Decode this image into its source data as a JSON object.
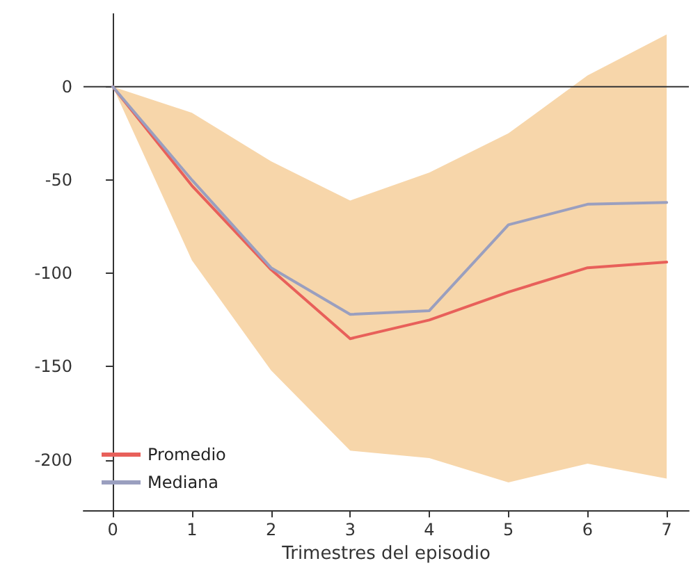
{
  "chart_data": {
    "type": "line",
    "xlabel": "Trimestres del episodio",
    "x": [
      0,
      1,
      2,
      3,
      4,
      5,
      6,
      7
    ],
    "series": [
      {
        "name": "Promedio",
        "color": "#e8605a",
        "values": [
          0,
          -53,
          -98,
          -135,
          -125,
          -110,
          -97,
          -94
        ],
        "lower": [
          0,
          -93,
          -152,
          -195,
          -199,
          -212,
          -202,
          -210
        ],
        "upper": [
          0,
          -14,
          -40,
          -61,
          -46,
          -25,
          6,
          28
        ]
      },
      {
        "name": "Mediana",
        "color": "#9a9fbf",
        "values": [
          0,
          -50,
          -97,
          -122,
          -120,
          -74,
          -63,
          -62
        ]
      }
    ],
    "xlim": [
      -0.37,
      7.28
    ],
    "xticks": [
      0,
      1,
      2,
      3,
      4,
      5,
      6,
      7
    ],
    "ylim": [
      -227,
      39
    ],
    "yticks": [
      -200,
      -150,
      -100,
      -50,
      0
    ],
    "ref_lines": [
      {
        "axis": "y",
        "value": 0,
        "color": "#333333"
      }
    ],
    "legend": "bottom left",
    "marker": "none",
    "line_style": "solid"
  }
}
